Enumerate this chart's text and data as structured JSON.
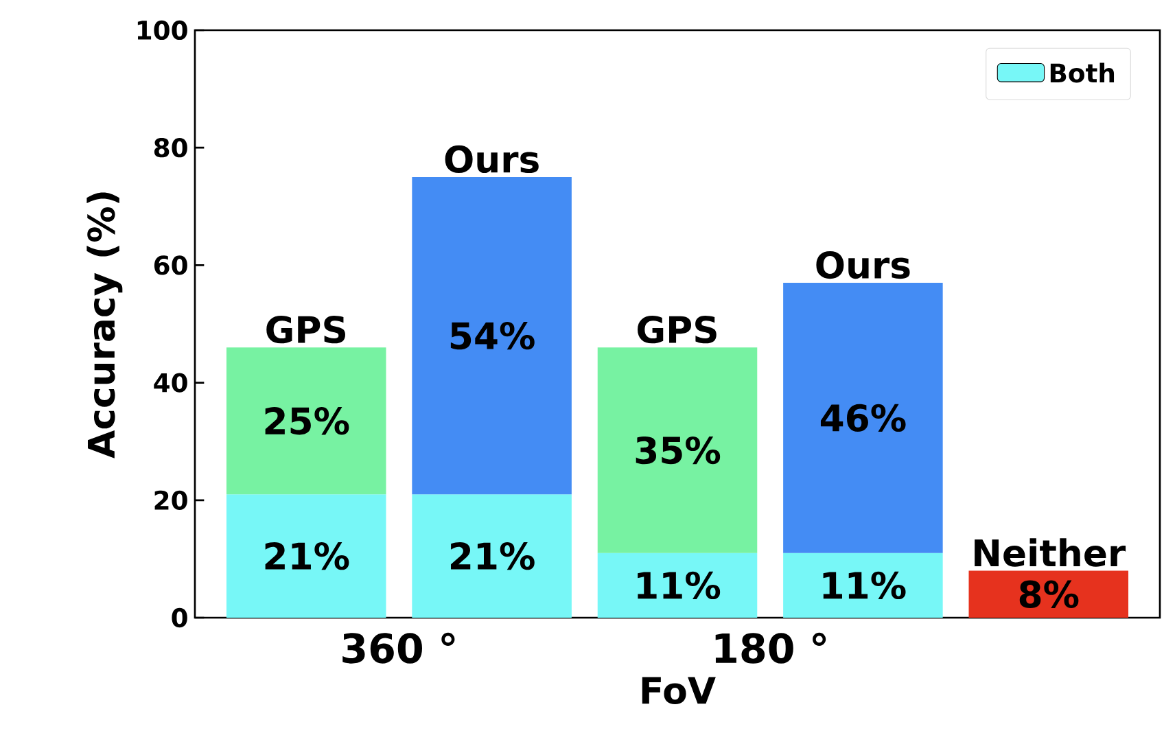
{
  "chart_data": {
    "type": "bar",
    "stacked": true,
    "xlabel": "FoV",
    "ylabel": "Accuracy (%)",
    "categories": [
      null,
      null,
      null,
      null,
      null
    ],
    "ylim": [
      0,
      100
    ],
    "yticks": [
      0,
      20,
      40,
      60,
      80,
      100
    ],
    "legend": "top right",
    "series": [
      {
        "name": "Both",
        "color": "#77f7f7",
        "values": [
          21,
          21,
          11,
          11,
          null
        ],
        "value_labels": [
          "21%",
          "21%",
          "11%",
          "11%",
          null
        ]
      },
      {
        "colors": [
          "#77f2a2",
          "#448cf4",
          "#77f2a2",
          "#448cf4",
          "#e6321e"
        ],
        "values": [
          25,
          54,
          35,
          46,
          8
        ],
        "value_labels": [
          "25%",
          "54%",
          "35%",
          "46%",
          "8%"
        ]
      }
    ],
    "annotations": [
      {
        "text": "GPS",
        "y": 46
      },
      {
        "text": "Ours",
        "y": 75
      },
      {
        "text": "GPS",
        "y": 46
      },
      {
        "text": "Ours",
        "y": 57
      },
      {
        "text": "Neither",
        "y": 8
      },
      "360 °",
      "180 °"
    ]
  }
}
